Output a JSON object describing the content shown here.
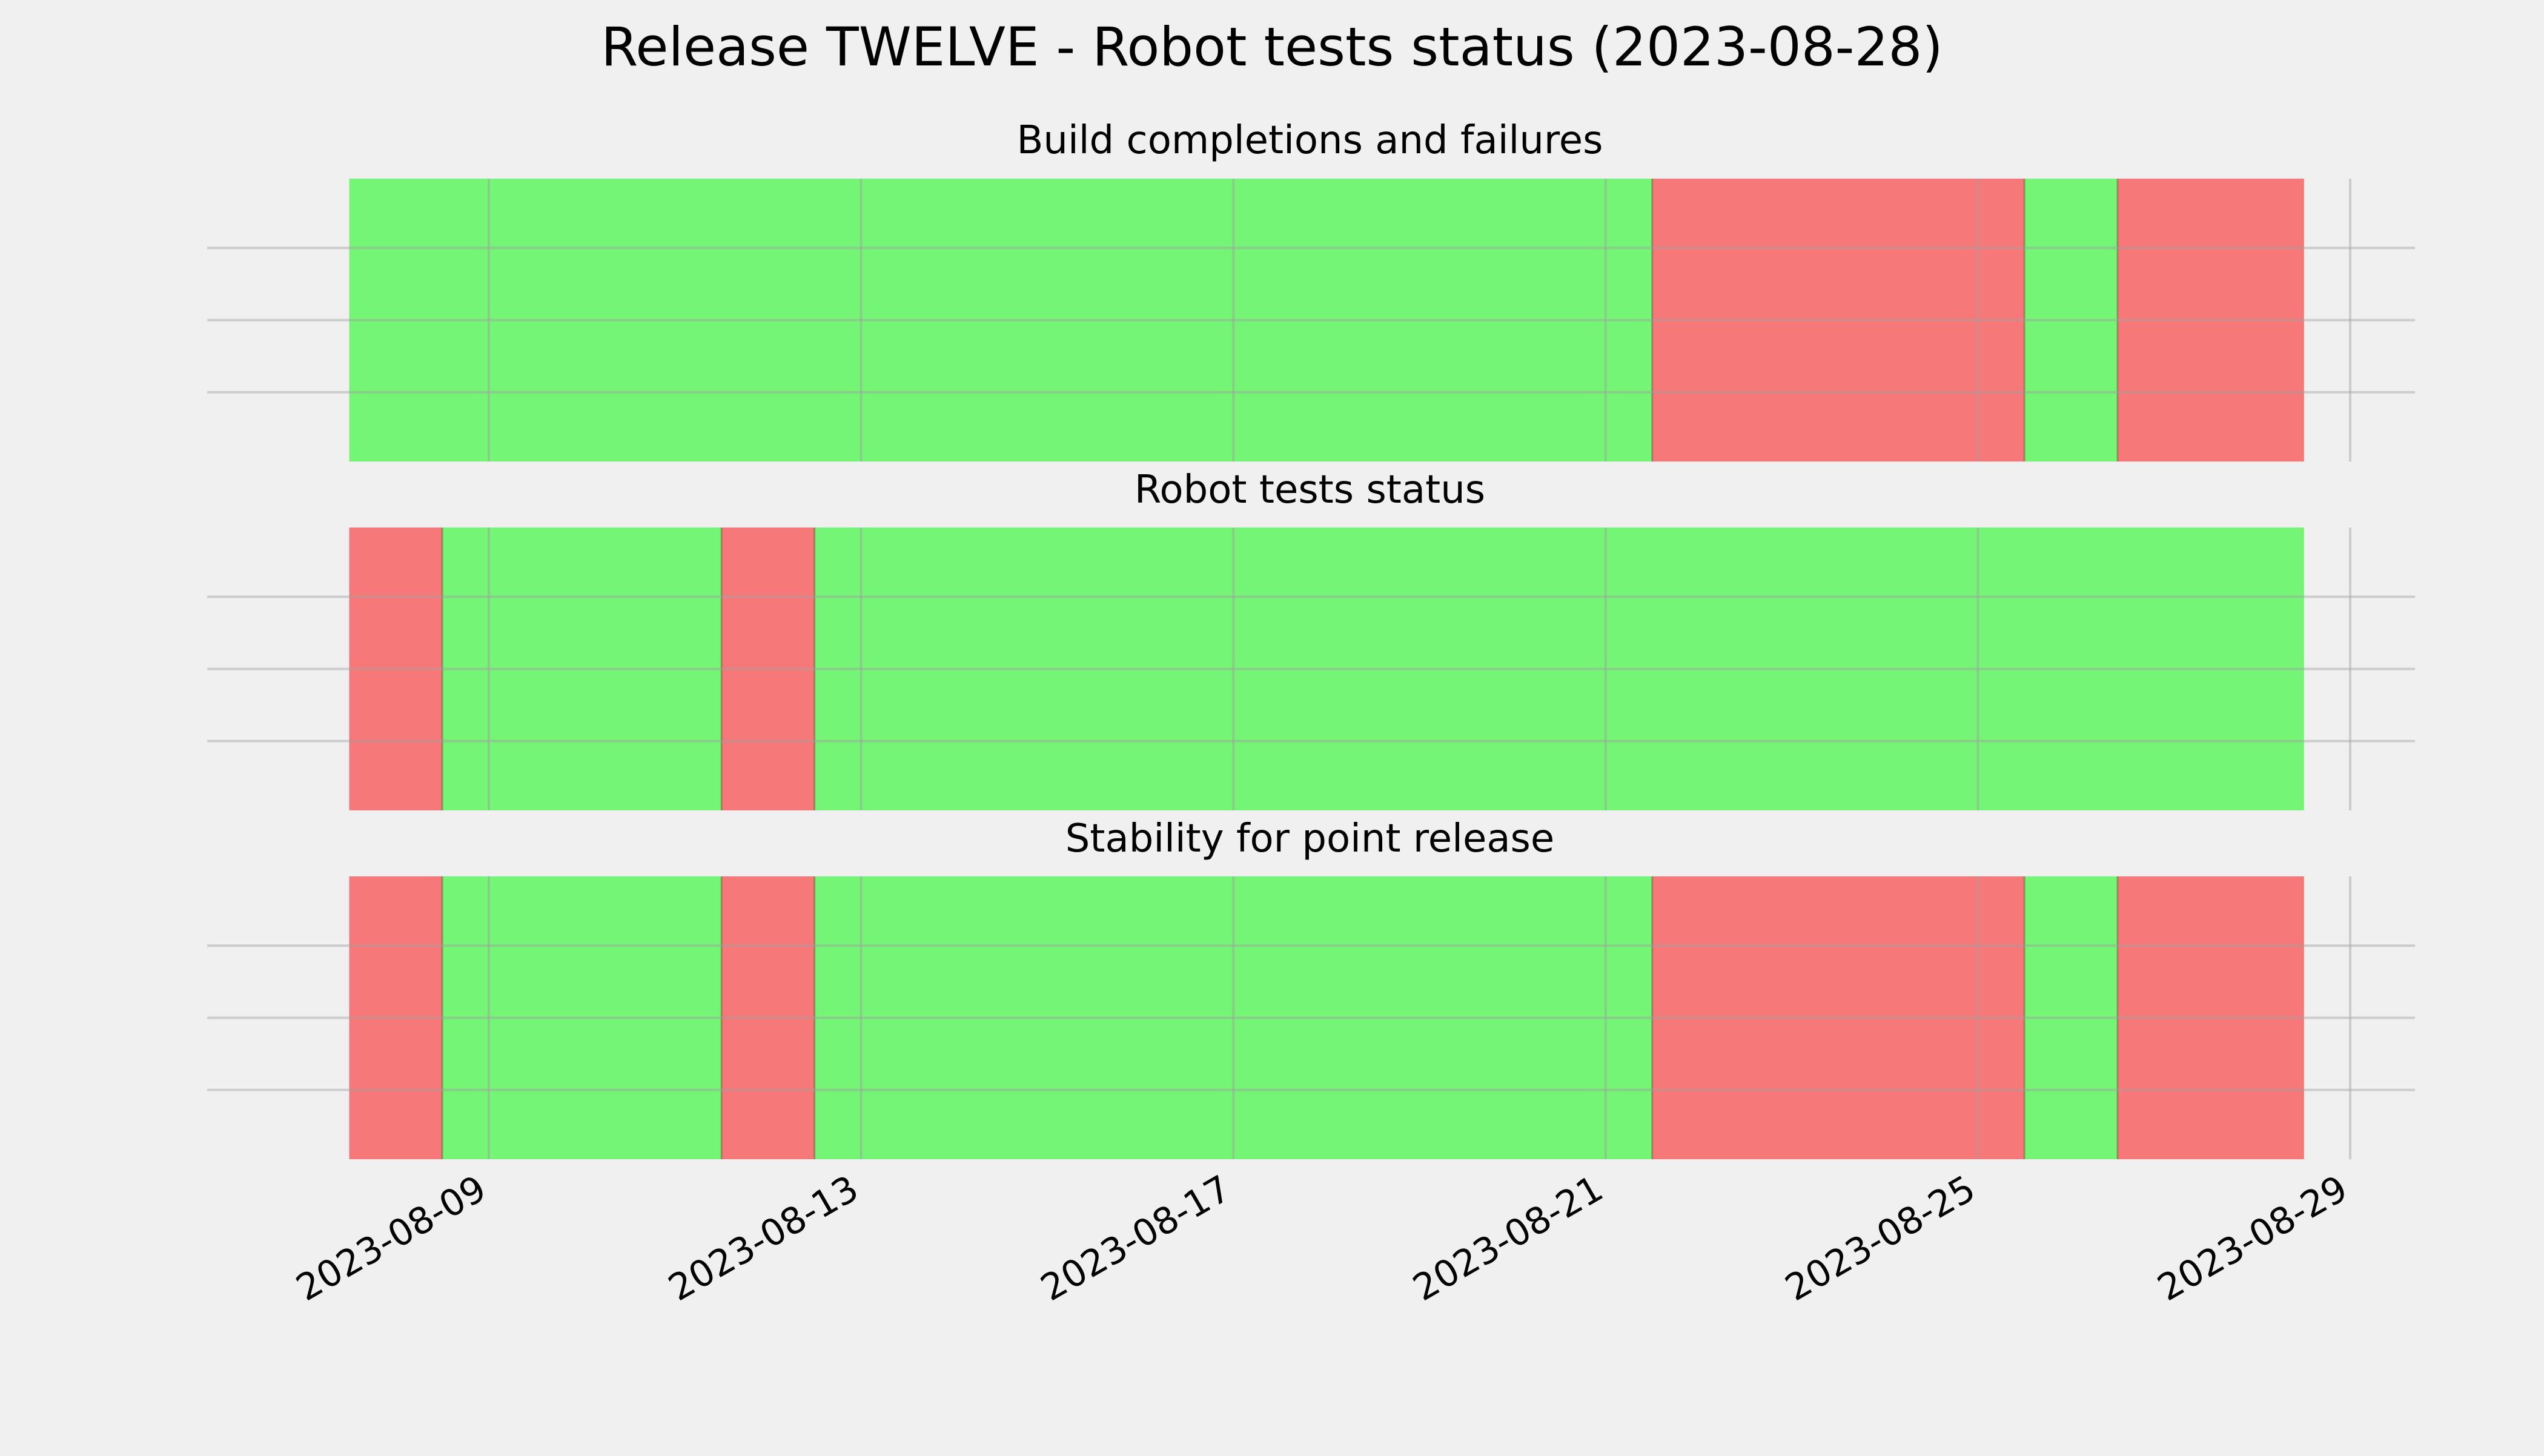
{
  "colors": {
    "pass": "#75f575",
    "fail": "#f77878",
    "background": "#f0f0f0",
    "grid": "#cbcbcb"
  },
  "chart_data": {
    "type": "timeline",
    "title": "Release TWELVE - Robot tests status (2023-08-28)",
    "xlim": [
      "2023-08-07",
      "2023-08-29"
    ],
    "x_ticks": [
      "2023-08-09",
      "2023-08-13",
      "2023-08-17",
      "2023-08-21",
      "2023-08-25",
      "2023-08-29"
    ],
    "grid": true,
    "legend": "none",
    "panels": [
      {
        "title": "Build completions and failures",
        "days": [
          "2023-08-08",
          "2023-08-09",
          "2023-08-10",
          "2023-08-11",
          "2023-08-12",
          "2023-08-13",
          "2023-08-14",
          "2023-08-15",
          "2023-08-16",
          "2023-08-17",
          "2023-08-18",
          "2023-08-19",
          "2023-08-20",
          "2023-08-21",
          "2023-08-22",
          "2023-08-23",
          "2023-08-24",
          "2023-08-25",
          "2023-08-26",
          "2023-08-27",
          "2023-08-28"
        ],
        "status": [
          "pass",
          "pass",
          "pass",
          "pass",
          "pass",
          "pass",
          "pass",
          "pass",
          "pass",
          "pass",
          "pass",
          "pass",
          "pass",
          "pass",
          "fail",
          "fail",
          "fail",
          "fail",
          "pass",
          "fail",
          "fail"
        ]
      },
      {
        "title": "Robot tests status",
        "days": [
          "2023-08-08",
          "2023-08-09",
          "2023-08-10",
          "2023-08-11",
          "2023-08-12",
          "2023-08-13",
          "2023-08-14",
          "2023-08-15",
          "2023-08-16",
          "2023-08-17",
          "2023-08-18",
          "2023-08-19",
          "2023-08-20",
          "2023-08-21",
          "2023-08-22",
          "2023-08-23",
          "2023-08-24",
          "2023-08-25",
          "2023-08-26",
          "2023-08-27",
          "2023-08-28"
        ],
        "status": [
          "fail",
          "pass",
          "pass",
          "pass",
          "fail",
          "pass",
          "pass",
          "pass",
          "pass",
          "pass",
          "pass",
          "pass",
          "pass",
          "pass",
          "pass",
          "pass",
          "pass",
          "pass",
          "pass",
          "pass",
          "pass"
        ]
      },
      {
        "title": "Stability for point release",
        "days": [
          "2023-08-08",
          "2023-08-09",
          "2023-08-10",
          "2023-08-11",
          "2023-08-12",
          "2023-08-13",
          "2023-08-14",
          "2023-08-15",
          "2023-08-16",
          "2023-08-17",
          "2023-08-18",
          "2023-08-19",
          "2023-08-20",
          "2023-08-21",
          "2023-08-22",
          "2023-08-23",
          "2023-08-24",
          "2023-08-25",
          "2023-08-26",
          "2023-08-27",
          "2023-08-28"
        ],
        "status": [
          "fail",
          "pass",
          "pass",
          "pass",
          "fail",
          "pass",
          "pass",
          "pass",
          "pass",
          "pass",
          "pass",
          "pass",
          "pass",
          "pass",
          "fail",
          "fail",
          "fail",
          "fail",
          "pass",
          "fail",
          "fail"
        ]
      }
    ]
  }
}
